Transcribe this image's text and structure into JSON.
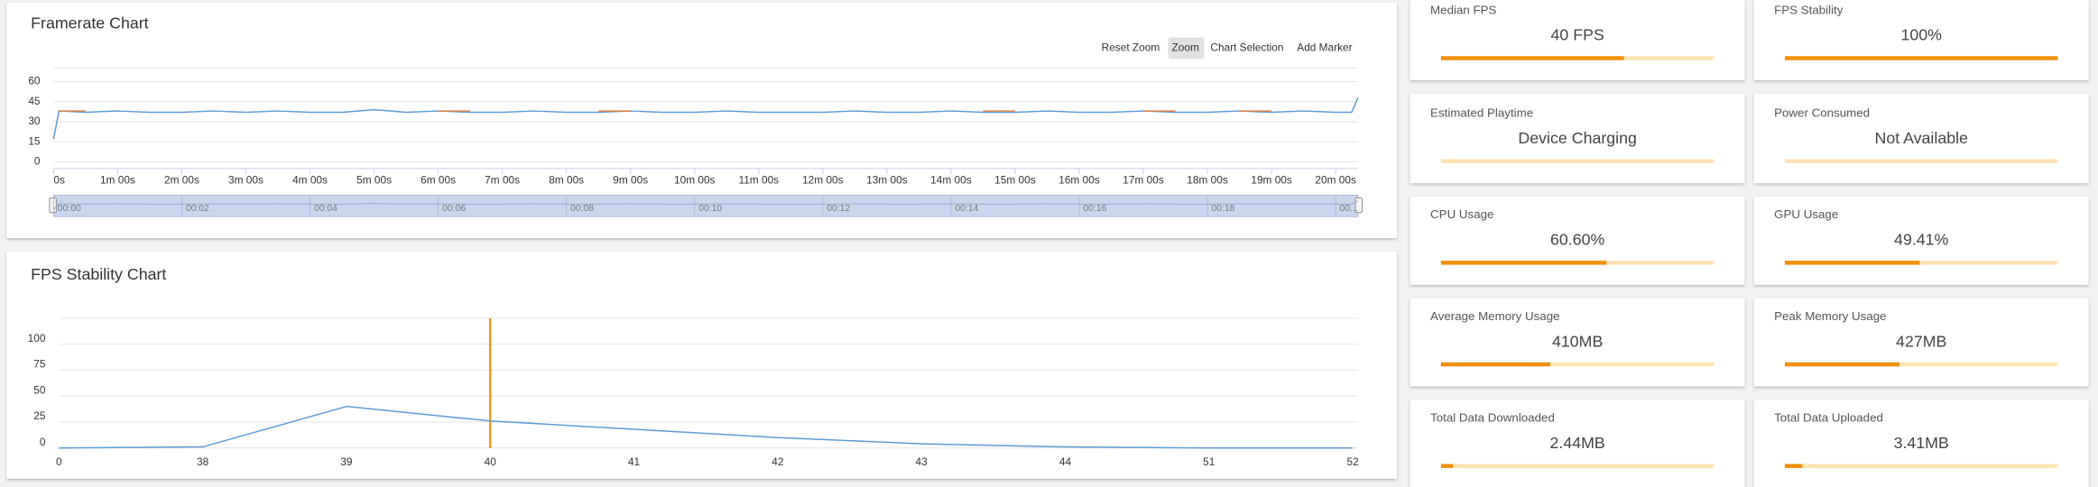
{
  "framerate_chart": {
    "type": "line",
    "title": "Framerate Chart",
    "buttons": [
      "Reset Zoom",
      "Zoom",
      "Chart Selection",
      "Add Marker"
    ],
    "x": [
      0,
      5,
      30,
      60,
      90,
      120,
      150,
      180,
      210,
      240,
      270,
      300,
      330,
      360,
      390,
      420,
      450,
      480,
      510,
      540,
      570,
      600,
      630,
      660,
      690,
      720,
      750,
      780,
      810,
      840,
      870,
      900,
      930,
      960,
      990,
      1020,
      1050,
      1080,
      1110,
      1140,
      1170,
      1200,
      1215,
      1221
    ],
    "series": [
      {
        "color": "#5b9bd5",
        "values": [
          17,
          38,
          37,
          38,
          37,
          37,
          38,
          37,
          38,
          37,
          37,
          39,
          37,
          38,
          37,
          37,
          38,
          37,
          37,
          38,
          37,
          37,
          38,
          37,
          37,
          37,
          38,
          37,
          37,
          38,
          37,
          37,
          38,
          37,
          37,
          38,
          37,
          37,
          38,
          37,
          38,
          37,
          37,
          48
        ]
      },
      {
        "color": "#ed7d31",
        "values": [
          null,
          38,
          38,
          null,
          null,
          null,
          null,
          null,
          null,
          null,
          null,
          null,
          null,
          38,
          38,
          null,
          null,
          null,
          38,
          38,
          null,
          null,
          null,
          null,
          null,
          null,
          null,
          null,
          null,
          null,
          38,
          38,
          null,
          null,
          null,
          38,
          38,
          null,
          38,
          38,
          null,
          null,
          null,
          null
        ]
      }
    ],
    "xlim": [
      0,
      1221
    ],
    "ylim": [
      0,
      60
    ],
    "yticks": [
      0,
      15,
      30,
      45,
      60
    ],
    "xticks": [
      {
        "value": 0,
        "label": "0s"
      },
      {
        "value": 60,
        "label": "1m 00s"
      },
      {
        "value": 120,
        "label": "2m 00s"
      },
      {
        "value": 180,
        "label": "3m 00s"
      },
      {
        "value": 240,
        "label": "4m 00s"
      },
      {
        "value": 300,
        "label": "5m 00s"
      },
      {
        "value": 360,
        "label": "6m 00s"
      },
      {
        "value": 420,
        "label": "7m 00s"
      },
      {
        "value": 480,
        "label": "8m 00s"
      },
      {
        "value": 540,
        "label": "9m 00s"
      },
      {
        "value": 600,
        "label": "10m 00s"
      },
      {
        "value": 660,
        "label": "11m 00s"
      },
      {
        "value": 720,
        "label": "12m 00s"
      },
      {
        "value": 780,
        "label": "13m 00s"
      },
      {
        "value": 840,
        "label": "14m 00s"
      },
      {
        "value": 900,
        "label": "15m 00s"
      },
      {
        "value": 960,
        "label": "16m 00s"
      },
      {
        "value": 1020,
        "label": "17m 00s"
      },
      {
        "value": 1080,
        "label": "18m 00s"
      },
      {
        "value": 1140,
        "label": "19m 00s"
      },
      {
        "value": 1200,
        "label": "20m 00s"
      }
    ],
    "navigator_ticks": [
      {
        "value": 0,
        "label": "00:00"
      },
      {
        "value": 120,
        "label": "00:02"
      },
      {
        "value": 240,
        "label": "00:04"
      },
      {
        "value": 360,
        "label": "00:06"
      },
      {
        "value": 480,
        "label": "00:08"
      },
      {
        "value": 600,
        "label": "00:10"
      },
      {
        "value": 720,
        "label": "00:12"
      },
      {
        "value": 840,
        "label": "00:14"
      },
      {
        "value": 960,
        "label": "00:16"
      },
      {
        "value": 1080,
        "label": "00:18"
      },
      {
        "value": 1200,
        "label": "00..."
      }
    ],
    "grid": true
  },
  "stability_chart": {
    "type": "line",
    "title": "FPS Stability Chart",
    "categories": [
      "0",
      "38",
      "39",
      "40",
      "41",
      "42",
      "43",
      "44",
      "51",
      "52"
    ],
    "series": [
      {
        "color": "#5b9bd5",
        "values": [
          0,
          1,
          40,
          26,
          18,
          10,
          4,
          1,
          0,
          0
        ]
      }
    ],
    "marker": {
      "category": "40",
      "color": "#f28c00"
    },
    "ylim": [
      0,
      125
    ],
    "yticks": [
      0,
      25,
      50,
      75,
      100
    ],
    "grid": true
  },
  "stat_cards": [
    {
      "label": "Median FPS",
      "value": "40 FPS",
      "progress": 67
    },
    {
      "label": "FPS Stability",
      "value": "100%",
      "progress": 100
    },
    {
      "label": "Estimated Playtime",
      "value": "Device Charging",
      "progress": 0
    },
    {
      "label": "Power Consumed",
      "value": "Not Available",
      "progress": 0
    },
    {
      "label": "CPU Usage",
      "value": "60.60%",
      "progress": 60.6
    },
    {
      "label": "GPU Usage",
      "value": "49.41%",
      "progress": 49.41
    },
    {
      "label": "Average Memory Usage",
      "value": "410MB",
      "progress": 40
    },
    {
      "label": "Peak Memory Usage",
      "value": "427MB",
      "progress": 42
    },
    {
      "label": "Total Data Downloaded",
      "value": "2.44MB",
      "progress": 4.4
    },
    {
      "label": "Total Data Uploaded",
      "value": "3.41MB",
      "progress": 6.4
    }
  ]
}
